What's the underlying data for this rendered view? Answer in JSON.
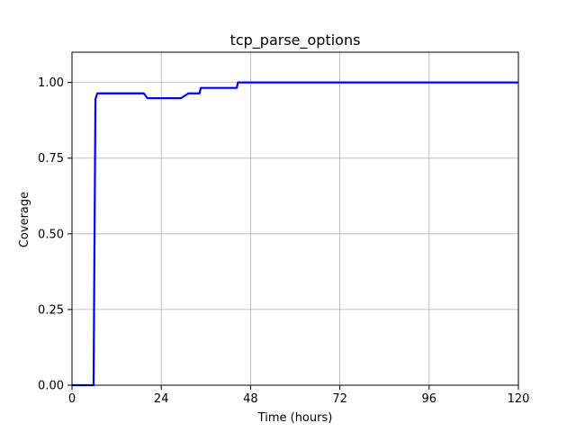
{
  "chart_data": {
    "type": "line",
    "title": "tcp_parse_options",
    "xlabel": "Time (hours)",
    "ylabel": "Coverage",
    "xlim": [
      0,
      120
    ],
    "ylim": [
      0,
      1.1
    ],
    "xticks": [
      0,
      24,
      48,
      72,
      96,
      120
    ],
    "xtick_labels": [
      "0",
      "24",
      "48",
      "72",
      "96",
      "120"
    ],
    "yticks": [
      0,
      0.25,
      0.5,
      0.75,
      1.0
    ],
    "ytick_labels": [
      "0.00",
      "0.25",
      "0.50",
      "0.75",
      "1.00"
    ],
    "grid": true,
    "series": [
      {
        "color": "#0000ff",
        "x": [
          0,
          5.8,
          6.3,
          6.8,
          19.3,
          20.3,
          29.3,
          31.3,
          34.3,
          34.6,
          44.3,
          44.6,
          120
        ],
        "y": [
          0,
          0,
          0.945,
          0.964,
          0.964,
          0.948,
          0.948,
          0.964,
          0.964,
          0.982,
          0.982,
          1.0,
          1.0
        ]
      }
    ]
  }
}
